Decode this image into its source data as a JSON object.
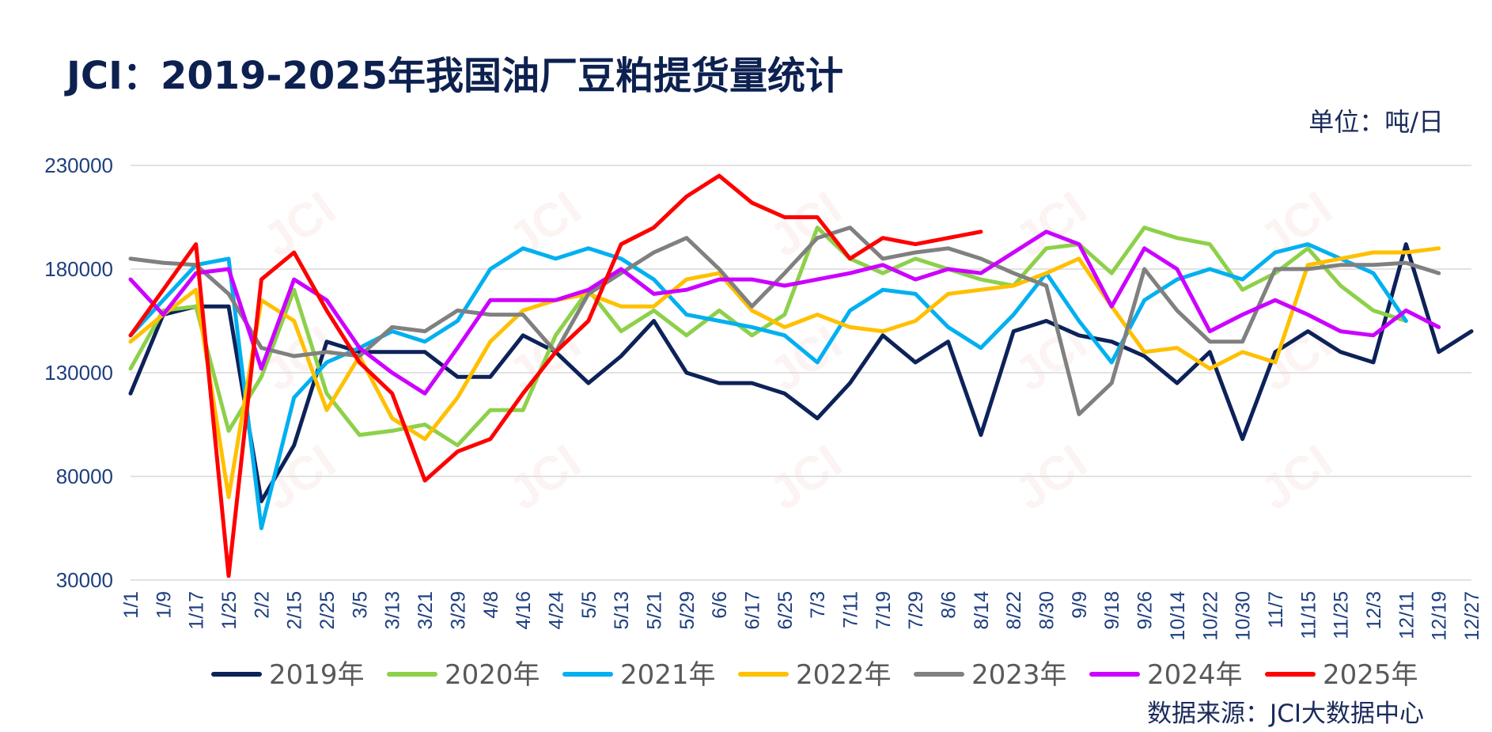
{
  "title": "JCI：2019-2025年我国油厂豆粕提货量统计",
  "unit": "单位：吨/日",
  "source": "数据来源：JCI大数据中心",
  "watermark": "JCI",
  "chart_data": {
    "type": "line",
    "ylim": [
      30000,
      230000
    ],
    "yticks": [
      30000,
      80000,
      130000,
      180000,
      230000
    ],
    "grid": true,
    "legend_position": "bottom",
    "categories": [
      "1/1",
      "1/9",
      "1/17",
      "1/25",
      "2/2",
      "2/15",
      "2/25",
      "3/5",
      "3/13",
      "3/21",
      "3/29",
      "4/8",
      "4/16",
      "4/24",
      "5/5",
      "5/13",
      "5/21",
      "5/29",
      "6/6",
      "6/17",
      "6/25",
      "7/3",
      "7/11",
      "7/19",
      "7/29",
      "8/6",
      "8/14",
      "8/22",
      "8/30",
      "9/9",
      "9/18",
      "9/26",
      "10/14",
      "10/22",
      "10/30",
      "11/7",
      "11/15",
      "11/25",
      "12/3",
      "12/11",
      "12/19",
      "12/27"
    ],
    "series": [
      {
        "name": "2019年",
        "color": "#0d2259",
        "values": [
          120000,
          158000,
          162000,
          162000,
          68000,
          95000,
          145000,
          140000,
          140000,
          140000,
          128000,
          128000,
          148000,
          140000,
          125000,
          138000,
          155000,
          130000,
          125000,
          125000,
          120000,
          108000,
          125000,
          148000,
          135000,
          145000,
          100000,
          150000,
          155000,
          148000,
          145000,
          138000,
          125000,
          140000,
          98000,
          140000,
          150000,
          140000,
          135000,
          192000,
          140000,
          150000
        ]
      },
      {
        "name": "2020年",
        "color": "#8dd04a",
        "values": [
          132000,
          160000,
          162000,
          102000,
          128000,
          170000,
          120000,
          100000,
          102000,
          105000,
          95000,
          112000,
          112000,
          148000,
          170000,
          150000,
          160000,
          148000,
          160000,
          148000,
          158000,
          200000,
          185000,
          178000,
          185000,
          180000,
          175000,
          172000,
          190000,
          192000,
          178000,
          200000,
          195000,
          192000,
          170000,
          178000,
          190000,
          172000,
          160000,
          155000,
          null,
          null
        ]
      },
      {
        "name": "2021年",
        "color": "#00b0f0",
        "values": [
          148000,
          165000,
          182000,
          185000,
          55000,
          118000,
          135000,
          142000,
          150000,
          145000,
          155000,
          180000,
          190000,
          185000,
          190000,
          185000,
          175000,
          158000,
          155000,
          152000,
          148000,
          135000,
          160000,
          170000,
          168000,
          152000,
          142000,
          158000,
          178000,
          155000,
          135000,
          165000,
          175000,
          180000,
          175000,
          188000,
          192000,
          185000,
          178000,
          155000,
          null,
          null
        ]
      },
      {
        "name": "2022年",
        "color": "#ffc000",
        "values": [
          145000,
          158000,
          170000,
          70000,
          165000,
          155000,
          112000,
          138000,
          108000,
          98000,
          118000,
          145000,
          160000,
          165000,
          168000,
          162000,
          162000,
          175000,
          178000,
          160000,
          152000,
          158000,
          152000,
          150000,
          155000,
          168000,
          170000,
          172000,
          178000,
          185000,
          162000,
          140000,
          142000,
          132000,
          140000,
          135000,
          182000,
          185000,
          188000,
          188000,
          190000,
          null
        ]
      },
      {
        "name": "2023年",
        "color": "#808080",
        "values": [
          185000,
          183000,
          182000,
          168000,
          142000,
          138000,
          140000,
          138000,
          152000,
          150000,
          160000,
          158000,
          158000,
          140000,
          168000,
          178000,
          188000,
          195000,
          180000,
          162000,
          178000,
          195000,
          200000,
          185000,
          188000,
          190000,
          185000,
          178000,
          172000,
          110000,
          125000,
          180000,
          160000,
          145000,
          145000,
          180000,
          180000,
          182000,
          182000,
          183000,
          178000,
          null
        ]
      },
      {
        "name": "2024年",
        "color": "#cc00ff",
        "values": [
          175000,
          158000,
          178000,
          180000,
          132000,
          175000,
          165000,
          142000,
          130000,
          120000,
          142000,
          165000,
          165000,
          165000,
          170000,
          180000,
          168000,
          170000,
          175000,
          175000,
          172000,
          175000,
          178000,
          182000,
          175000,
          180000,
          178000,
          188000,
          198000,
          192000,
          162000,
          190000,
          180000,
          150000,
          158000,
          165000,
          158000,
          150000,
          148000,
          160000,
          152000,
          null
        ]
      },
      {
        "name": "2025年",
        "color": "#ff0000",
        "values": [
          148000,
          170000,
          192000,
          32000,
          175000,
          188000,
          160000,
          135000,
          120000,
          78000,
          92000,
          98000,
          120000,
          140000,
          155000,
          192000,
          200000,
          215000,
          225000,
          212000,
          205000,
          205000,
          185000,
          195000,
          192000,
          195000,
          198000,
          null,
          null,
          null,
          null,
          null,
          null,
          null,
          null,
          null,
          null,
          null,
          null,
          null,
          null,
          null
        ]
      }
    ]
  }
}
